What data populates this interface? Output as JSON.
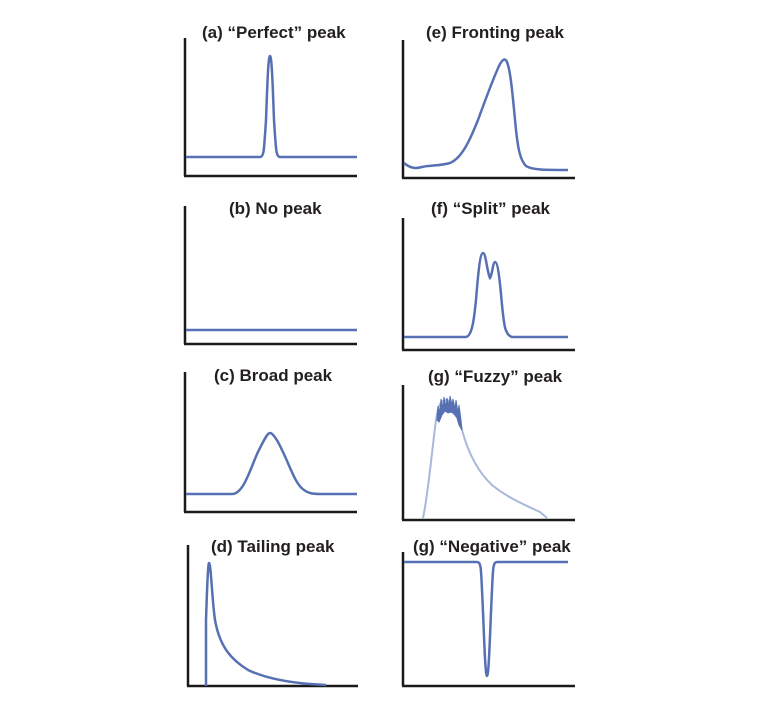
{
  "colors": {
    "curve": "#5670b3",
    "axis": "#1a1a1a",
    "fuzzy": "#9fb0d2"
  },
  "panels": [
    {
      "id": "a",
      "title": "(a) “Perfect” peak"
    },
    {
      "id": "b",
      "title": "(b) No peak"
    },
    {
      "id": "c",
      "title": "(c) Broad peak"
    },
    {
      "id": "d",
      "title": "(d) Tailing peak"
    },
    {
      "id": "e",
      "title": "(e) Fronting peak"
    },
    {
      "id": "f",
      "title": "(f) “Split” peak"
    },
    {
      "id": "g",
      "title": "(g) “Fuzzy” peak"
    },
    {
      "id": "h",
      "title": "(g) “Negative” peak"
    }
  ]
}
